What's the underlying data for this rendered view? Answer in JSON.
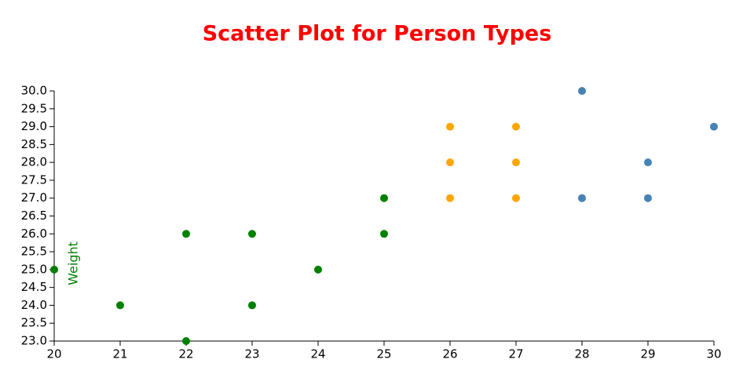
{
  "chart_data": {
    "type": "scatter",
    "title": "Scatter Plot for Person Types",
    "y_label": "Weight",
    "xlim": [
      20,
      30
    ],
    "xticks": [
      20,
      21,
      22,
      23,
      24,
      25,
      26,
      27,
      28,
      29,
      30
    ],
    "ylim": [
      23,
      30
    ],
    "yticks": [
      {
        "value": 23,
        "label": "23.0"
      },
      {
        "value": 23.5,
        "label": "23.5"
      },
      {
        "value": 24,
        "label": "24.0"
      },
      {
        "value": 24.5,
        "label": "24.5"
      },
      {
        "value": 25,
        "label": "25.0"
      },
      {
        "value": 25.5,
        "label": "25.5"
      },
      {
        "value": 26,
        "label": "26.0"
      },
      {
        "value": 26.5,
        "label": "26.5"
      },
      {
        "value": 27,
        "label": "27.0"
      },
      {
        "value": 27.5,
        "label": "27.5"
      },
      {
        "value": 28,
        "label": "28.0"
      },
      {
        "value": 28.5,
        "label": "28.5"
      },
      {
        "value": 29,
        "label": "29.0"
      },
      {
        "value": 29.5,
        "label": "29.5"
      },
      {
        "value": 30,
        "label": "30.0"
      }
    ],
    "series": [
      {
        "color": "#008000",
        "x": [
          20,
          21,
          22,
          22,
          23,
          23,
          24,
          25,
          25
        ],
        "values": [
          25,
          24,
          26,
          23,
          26,
          24,
          25,
          27,
          26
        ]
      },
      {
        "color": "#ffa500",
        "x": [
          26,
          26,
          26,
          27,
          27,
          27
        ],
        "values": [
          29,
          28,
          27,
          29,
          28,
          27
        ]
      },
      {
        "color": "#4682b4",
        "x": [
          28,
          28,
          29,
          29,
          30
        ],
        "values": [
          30,
          27,
          28,
          27,
          29
        ]
      }
    ]
  }
}
